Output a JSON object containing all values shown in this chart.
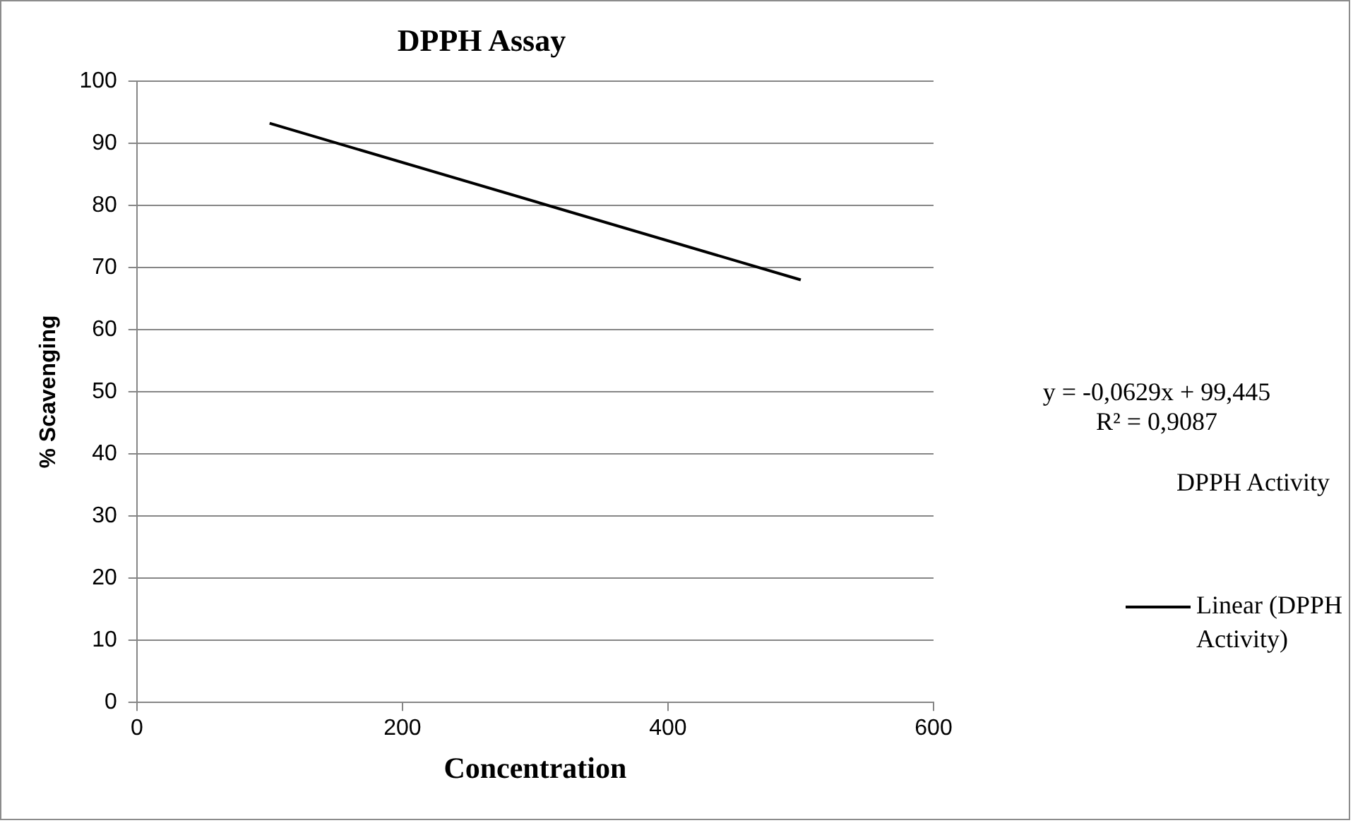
{
  "chart_data": {
    "type": "line",
    "title": "DPPH Assay",
    "xlabel": "Concentration",
    "ylabel": "% Scavenging",
    "x": [
      100,
      500
    ],
    "series": [
      {
        "name": "Linear (DPPH Activity)",
        "color": "#000000",
        "values": [
          93.2,
          68
        ]
      }
    ],
    "xlim": [
      0,
      600
    ],
    "xticks": [
      0,
      200,
      400,
      600
    ],
    "ylim": [
      0,
      100
    ],
    "yticks": [
      0,
      10,
      20,
      30,
      40,
      50,
      60,
      70,
      80,
      90,
      100
    ],
    "grid": "y",
    "legend": "right",
    "marker": "none",
    "line_style": "solid",
    "annotations": [
      "y = -0,0629x + 99,445",
      "R² = 0,9087",
      "DPPH Activity"
    ]
  }
}
